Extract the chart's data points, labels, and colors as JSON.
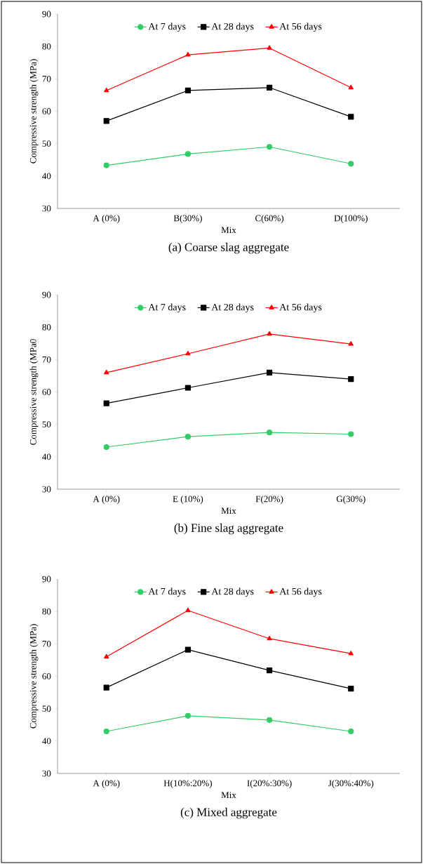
{
  "chart_data": [
    {
      "type": "line",
      "title": "(a) Coarse slag aggregate",
      "xlabel": "Mix",
      "ylabel": "Compressive strength (MPa)",
      "categories": [
        "A (0%)",
        "B(30%)",
        "C(60%)",
        "D(100%)"
      ],
      "ylim": [
        30,
        90
      ],
      "yticks": [
        30,
        40,
        50,
        60,
        70,
        80,
        90
      ],
      "legend": "top",
      "grid": false,
      "line_style": "solid",
      "series": [
        {
          "name": "At 7 days",
          "color": "#33cc66",
          "marker": "circle",
          "values": [
            43.3,
            46.8,
            49,
            43.8
          ]
        },
        {
          "name": "At 28 days",
          "color": "#000000",
          "marker": "square",
          "values": [
            57,
            66.4,
            67.3,
            58.3
          ]
        },
        {
          "name": "At 56 days",
          "color": "#ff0000",
          "marker": "triangle",
          "values": [
            66.4,
            77.4,
            79.5,
            67.3
          ]
        }
      ]
    },
    {
      "type": "line",
      "title": "(b) Fine slag aggregate",
      "xlabel": "Mix",
      "ylabel": "Compressive strength (MPa0",
      "categories": [
        "A (0%)",
        "E (10%)",
        "F(20%)",
        "G(30%)"
      ],
      "ylim": [
        30,
        90
      ],
      "yticks": [
        30,
        40,
        50,
        60,
        70,
        80,
        90
      ],
      "legend": "top",
      "grid": false,
      "line_style": "solid",
      "series": [
        {
          "name": "At 7 days",
          "color": "#33cc66",
          "marker": "circle",
          "values": [
            43,
            46.2,
            47.5,
            47
          ]
        },
        {
          "name": "At 28 days",
          "color": "#000000",
          "marker": "square",
          "values": [
            56.5,
            61.3,
            66,
            64
          ]
        },
        {
          "name": "At 56 days",
          "color": "#ff0000",
          "marker": "triangle",
          "values": [
            66,
            71.8,
            77.9,
            74.8
          ]
        }
      ]
    },
    {
      "type": "line",
      "title": "(c) Mixed aggregate",
      "xlabel": "Mix",
      "ylabel": "Compressive strength (MPa)",
      "categories": [
        "A (0%)",
        "H(10%:20%)",
        "I(20%:30%)",
        "J(30%:40%)"
      ],
      "ylim": [
        30,
        90
      ],
      "yticks": [
        30,
        40,
        50,
        60,
        70,
        80,
        90
      ],
      "legend": "top",
      "grid": false,
      "line_style": "solid",
      "series": [
        {
          "name": "At 7 days",
          "color": "#33cc66",
          "marker": "circle",
          "values": [
            43,
            47.8,
            46.5,
            43
          ]
        },
        {
          "name": "At 28 days",
          "color": "#000000",
          "marker": "square",
          "values": [
            56.5,
            68.2,
            61.8,
            56.2
          ]
        },
        {
          "name": "At 56 days",
          "color": "#ff0000",
          "marker": "triangle",
          "values": [
            66,
            80.3,
            71.6,
            67
          ]
        }
      ]
    }
  ]
}
